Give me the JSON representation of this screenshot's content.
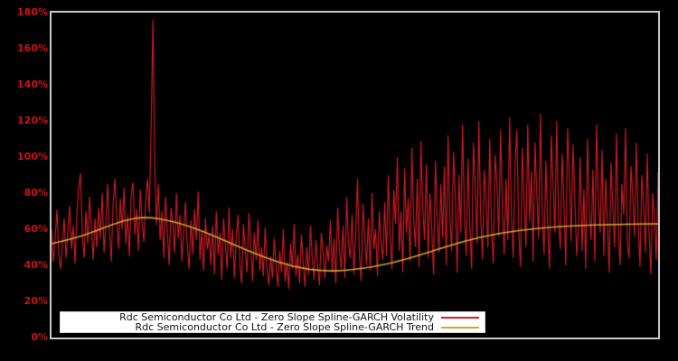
{
  "chart_data": {
    "type": "line",
    "title": "",
    "xlabel": "",
    "ylabel": "",
    "ylim": [
      0,
      180
    ],
    "y_tick_step": 20,
    "y_ticks": [
      "0%",
      "20%",
      "40%",
      "60%",
      "80%",
      "100%",
      "120%",
      "140%",
      "160%",
      "180%"
    ],
    "grid": false,
    "background": "#000000",
    "frame_color": "#c9c9c9",
    "legend_position": "bottom-left",
    "series": [
      {
        "name": "Rdc Semiconductor Co Ltd - Zero Slope Spline-GARCH Volatility",
        "color": "#d51c28",
        "style": "noisy-line",
        "unit": "percent",
        "values": [
          60,
          42,
          55,
          71,
          46,
          38,
          52,
          66,
          44,
          58,
          73,
          49,
          62,
          41,
          68,
          83,
          91,
          57,
          44,
          70,
          52,
          78,
          61,
          43,
          66,
          50,
          72,
          55,
          80,
          47,
          63,
          85,
          58,
          42,
          74,
          88,
          66,
          49,
          77,
          60,
          83,
          52,
          68,
          45,
          79,
          86,
          57,
          71,
          48,
          82,
          64,
          53,
          76,
          88,
          69,
          115,
          176,
          95,
          62,
          85,
          54,
          70,
          44,
          78,
          58,
          40,
          72,
          63,
          47,
          80,
          55,
          68,
          42,
          60,
          75,
          50,
          38,
          65,
          46,
          71,
          54,
          81,
          43,
          59,
          37,
          66,
          49,
          57,
          40,
          62,
          35,
          70,
          46,
          58,
          32,
          66,
          51,
          38,
          72,
          44,
          60,
          33,
          55,
          68,
          41,
          30,
          63,
          48,
          36,
          69,
          52,
          31,
          58,
          43,
          65,
          37,
          50,
          34,
          61,
          38,
          29,
          45,
          33,
          55,
          40,
          28,
          48,
          36,
          60,
          31,
          42,
          27,
          52,
          38,
          63,
          34,
          46,
          30,
          57,
          41,
          28,
          50,
          35,
          62,
          44,
          32,
          54,
          39,
          29,
          58,
          47,
          33,
          51,
          42,
          65,
          36,
          55,
          30,
          72,
          48,
          38,
          62,
          33,
          78,
          52,
          44,
          68,
          35,
          58,
          88,
          46,
          31,
          74,
          56,
          40,
          66,
          37,
          80,
          49,
          60,
          34,
          70,
          53,
          43,
          75,
          45,
          90,
          56,
          38,
          82,
          63,
          100,
          48,
          70,
          36,
          94,
          58,
          77,
          42,
          105,
          65,
          50,
          88,
          39,
          109,
          72,
          54,
          96,
          44,
          80,
          60,
          35,
          98,
          68,
          47,
          85,
          55,
          95,
          40,
          112,
          66,
          48,
          103,
          78,
          36,
          90,
          58,
          118,
          70,
          45,
          99,
          62,
          38,
          108,
          84,
          52,
          120,
          67,
          43,
          93,
          75,
          50,
          110,
          60,
          41,
          101,
          86,
          56,
          115,
          72,
          46,
          88,
          54,
          122,
          68,
          44,
          96,
          115,
          60,
          39,
          105,
          76,
          50,
          118,
          64,
          92,
          42,
          108,
          80,
          55,
          124,
          70,
          46,
          98,
          62,
          38,
          112,
          85,
          58,
          120,
          66,
          49,
          102,
          74,
          40,
          116,
          90,
          53,
          107,
          78,
          45,
          60,
          100,
          48,
          82,
          38,
          110,
          70,
          54,
          93,
          42,
          118,
          76,
          58,
          104,
          45,
          88,
          64,
          36,
          97,
          72,
          50,
          113,
          60,
          40,
          85,
          68,
          116,
          52,
          44,
          95,
          78,
          56,
          108,
          63,
          39,
          90,
          74,
          47,
          102,
          58,
          35,
          80,
          66,
          43,
          92
        ]
      },
      {
        "name": "Rdc Semiconductor Co Ltd - Zero Slope Spline-GARCH Trend",
        "color": "#cfa52e",
        "style": "smooth-spline-zero-slope-ends",
        "unit": "percent",
        "control_points": [
          [
            0.0,
            52
          ],
          [
            0.04,
            55
          ],
          [
            0.08,
            60
          ],
          [
            0.12,
            65
          ],
          [
            0.155,
            67
          ],
          [
            0.2,
            64.5
          ],
          [
            0.25,
            59
          ],
          [
            0.3,
            51.5
          ],
          [
            0.35,
            44.5
          ],
          [
            0.4,
            39
          ],
          [
            0.45,
            36.6
          ],
          [
            0.5,
            37.5
          ],
          [
            0.56,
            41
          ],
          [
            0.62,
            47
          ],
          [
            0.68,
            53.5
          ],
          [
            0.74,
            58
          ],
          [
            0.8,
            60.5
          ],
          [
            0.86,
            62
          ],
          [
            0.93,
            62.7
          ],
          [
            1.0,
            63
          ]
        ]
      }
    ]
  },
  "axes": {
    "tick_label_color": "#cc1118"
  },
  "legend": {
    "items": [
      {
        "label": "Rdc Semiconductor Co Ltd - Zero Slope Spline-GARCH Volatility",
        "color": "#d51c28"
      },
      {
        "label": "Rdc Semiconductor Co Ltd - Zero Slope Spline-GARCH Trend",
        "color": "#cfa52e"
      }
    ]
  }
}
